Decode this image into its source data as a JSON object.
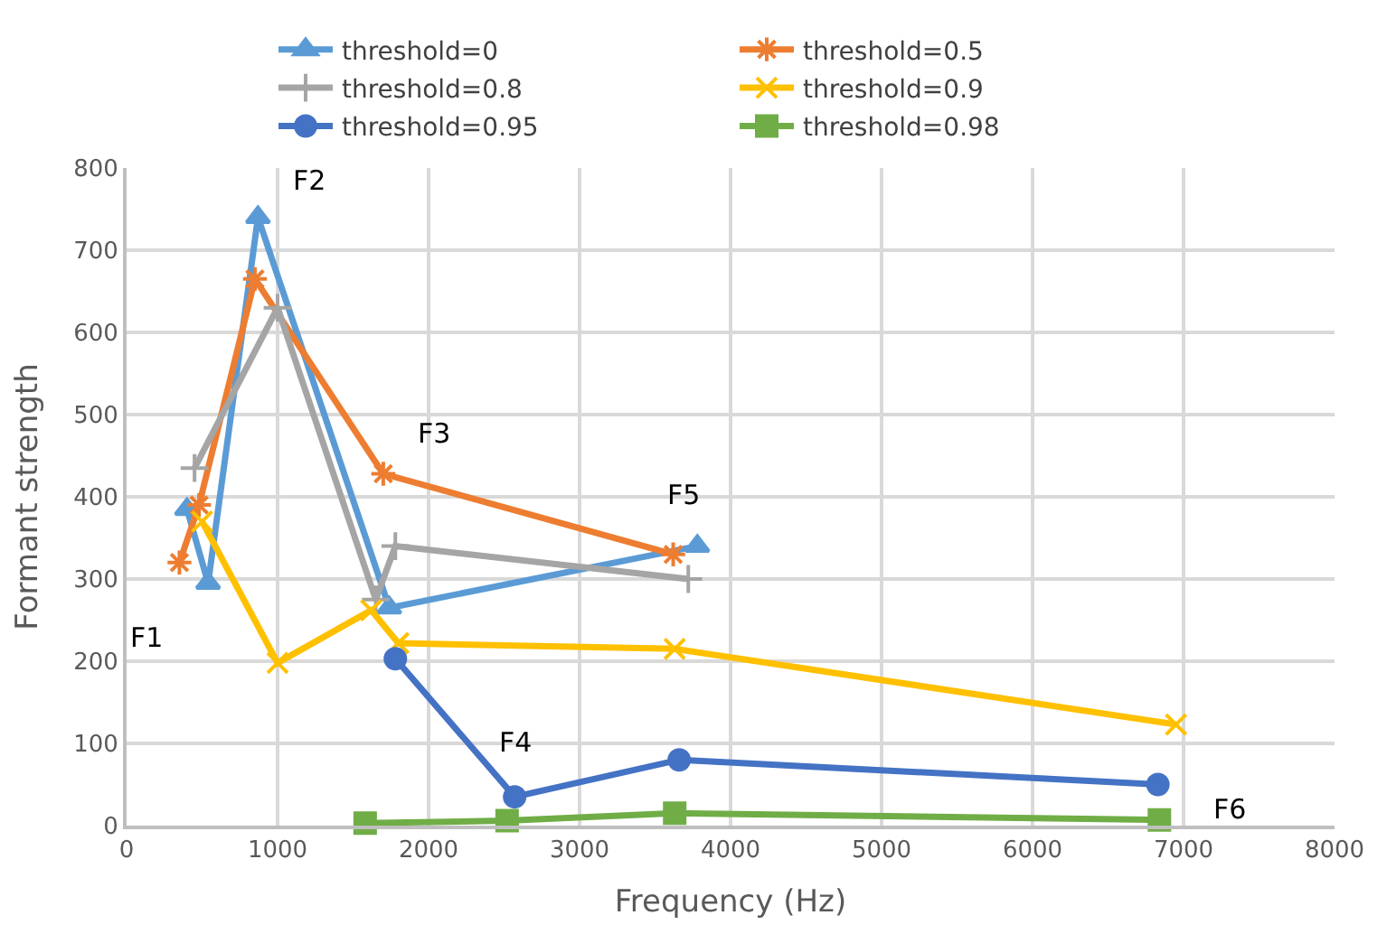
{
  "chart_data": {
    "type": "line",
    "xlabel": "Frequency (Hz)",
    "ylabel": "Formant strength",
    "xlim": [
      0,
      8000
    ],
    "xticks": [
      0,
      1000,
      2000,
      3000,
      4000,
      5000,
      6000,
      7000,
      8000
    ],
    "ylim": [
      0,
      800
    ],
    "yticks": [
      0,
      100,
      200,
      300,
      400,
      500,
      600,
      700,
      800
    ],
    "grid": true,
    "legend": "top",
    "line_style": "solid",
    "series": [
      {
        "name": "threshold=0",
        "color": "#5b9bd5",
        "marker": "triangle",
        "x": [
          400,
          540,
          870,
          1740,
          3780
        ],
        "values": [
          385,
          295,
          740,
          265,
          340
        ]
      },
      {
        "name": "threshold=0.5",
        "color": "#ed7d31",
        "marker": "cross",
        "x": [
          350,
          480,
          850,
          1700,
          3620
        ],
        "values": [
          320,
          390,
          665,
          428,
          330
        ]
      },
      {
        "name": "threshold=0.8",
        "color": "#a5a5a5",
        "marker": "cross",
        "x": [
          450,
          1000,
          1650,
          1780,
          3720
        ],
        "values": [
          435,
          630,
          275,
          340,
          300
        ]
      },
      {
        "name": "threshold=0.9",
        "color": "#ffc000",
        "marker": "cross",
        "x": [
          500,
          1000,
          1620,
          1800,
          3630,
          6950
        ],
        "values": [
          370,
          198,
          262,
          222,
          215,
          123
        ]
      },
      {
        "name": "threshold=0.95",
        "color": "#4472c4",
        "marker": "circle",
        "x": [
          1780,
          2570,
          3660,
          6830
        ],
        "values": [
          203,
          35,
          80,
          50
        ]
      },
      {
        "name": "threshold=0.98",
        "color": "#70ad47",
        "marker": "square",
        "x": [
          1580,
          2520,
          3630,
          6840
        ],
        "values": [
          3,
          6,
          15,
          7
        ]
      }
    ],
    "annotations": [
      {
        "text": "F1",
        "x": 350,
        "y": 320
      },
      {
        "text": "F2",
        "x": 870,
        "y": 740
      },
      {
        "text": "F3",
        "x": 1700,
        "y": 428
      },
      {
        "text": "F4",
        "x": 2570,
        "y": 35
      },
      {
        "text": "F5",
        "x": 3780,
        "y": 340
      },
      {
        "text": "F6",
        "x": 6830,
        "y": 50
      }
    ]
  }
}
